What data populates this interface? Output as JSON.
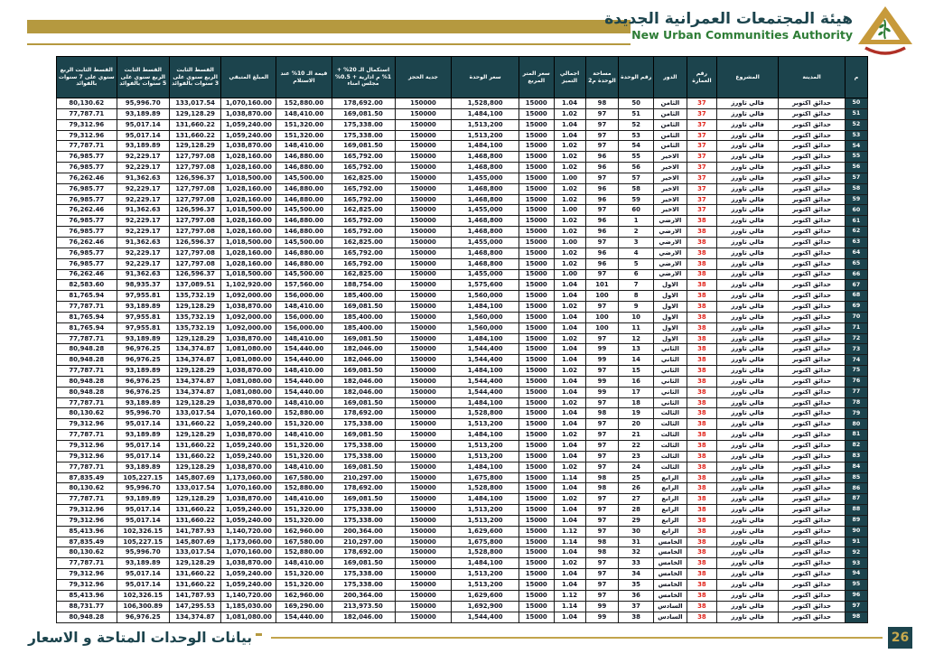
{
  "header": {
    "title_ar": "هيئة المجتمعات العمرانية الجديدة",
    "title_en": "New Urban Communities Authority",
    "logo_icon": "nuca-pyramid-logo"
  },
  "colors": {
    "gold": "#b5993f",
    "teal_header": "#1c444d",
    "green_brand": "#2e7d36",
    "red_building": "#e0241b"
  },
  "table": {
    "column_keys": [
      "no",
      "city",
      "project",
      "building_no",
      "floor",
      "unit_no",
      "area_m2",
      "premium_total",
      "meter_price",
      "unit_price",
      "booking_deposit",
      "completion_20pct",
      "delivery_10pct_value",
      "remaining_amount",
      "installment_3y",
      "installment_5y",
      "installment_7y"
    ],
    "columns": [
      "م",
      "المدينة",
      "المشروع",
      "رقم العمارة",
      "الدور",
      "رقم الوحدة",
      "مساحة الوحدة م2",
      "اجمالي التميز",
      "سعر المتر المربع",
      "سعر الوحدة",
      "جدية الحجز",
      "استكمال الـ 20% + 1% م ادارية + 0.5% مجلس امناء",
      "قيمة الـ 10% عند الاستلام",
      "المبلغ المتبقي",
      "القسط الثابت الربع سنوي على 3 سنوات بالفوائد",
      "القسط الثابت الربع سنوي على 5 سنوات بالفوائد",
      "القسط الثابت الربع سنوي على 7 سنوات بالفوائد"
    ],
    "rows": [
      [
        "50",
        "حدائق اكتوبر",
        "فالي تاورز",
        "37",
        "الثامن",
        "50",
        "98",
        "1.04",
        "15000",
        "1,528,800",
        "150000",
        "178,692.00",
        "152,880.00",
        "1,070,160.00",
        "133,017.54",
        "95,996.70",
        "80,130.62"
      ],
      [
        "51",
        "حدائق اكتوبر",
        "فالي تاورز",
        "37",
        "الثامن",
        "51",
        "97",
        "1.02",
        "15000",
        "1,484,100",
        "150000",
        "169,081.50",
        "148,410.00",
        "1,038,870.00",
        "129,128.29",
        "93,189.89",
        "77,787.71"
      ],
      [
        "52",
        "حدائق اكتوبر",
        "فالي تاورز",
        "37",
        "الثامن",
        "52",
        "97",
        "1.04",
        "15000",
        "1,513,200",
        "150000",
        "175,338.00",
        "151,320.00",
        "1,059,240.00",
        "131,660.22",
        "95,017.14",
        "79,312.96"
      ],
      [
        "53",
        "حدائق اكتوبر",
        "فالي تاورز",
        "37",
        "الثامن",
        "53",
        "97",
        "1.04",
        "15000",
        "1,513,200",
        "150000",
        "175,338.00",
        "151,320.00",
        "1,059,240.00",
        "131,660.22",
        "95,017.14",
        "79,312.96"
      ],
      [
        "54",
        "حدائق اكتوبر",
        "فالي تاورز",
        "37",
        "الثامن",
        "54",
        "97",
        "1.02",
        "15000",
        "1,484,100",
        "150000",
        "169,081.50",
        "148,410.00",
        "1,038,870.00",
        "129,128.29",
        "93,189.89",
        "77,787.71"
      ],
      [
        "55",
        "حدائق اكتوبر",
        "فالي تاورز",
        "37",
        "الاخير",
        "55",
        "96",
        "1.02",
        "15000",
        "1,468,800",
        "150000",
        "165,792.00",
        "146,880.00",
        "1,028,160.00",
        "127,797.08",
        "92,229.17",
        "76,985.77"
      ],
      [
        "56",
        "حدائق اكتوبر",
        "فالي تاورز",
        "37",
        "الاخير",
        "56",
        "96",
        "1.02",
        "15000",
        "1,468,800",
        "150000",
        "165,792.00",
        "146,880.00",
        "1,028,160.00",
        "127,797.08",
        "92,229.17",
        "76,985.77"
      ],
      [
        "57",
        "حدائق اكتوبر",
        "فالي تاورز",
        "37",
        "الاخير",
        "57",
        "97",
        "1.00",
        "15000",
        "1,455,000",
        "150000",
        "162,825.00",
        "145,500.00",
        "1,018,500.00",
        "126,596.37",
        "91,362.63",
        "76,262.46"
      ],
      [
        "58",
        "حدائق اكتوبر",
        "فالي تاورز",
        "37",
        "الاخير",
        "58",
        "96",
        "1.02",
        "15000",
        "1,468,800",
        "150000",
        "165,792.00",
        "146,880.00",
        "1,028,160.00",
        "127,797.08",
        "92,229.17",
        "76,985.77"
      ],
      [
        "59",
        "حدائق اكتوبر",
        "فالي تاورز",
        "37",
        "الاخير",
        "59",
        "96",
        "1.02",
        "15000",
        "1,468,800",
        "150000",
        "165,792.00",
        "146,880.00",
        "1,028,160.00",
        "127,797.08",
        "92,229.17",
        "76,985.77"
      ],
      [
        "60",
        "حدائق اكتوبر",
        "فالي تاورز",
        "37",
        "الاخير",
        "60",
        "97",
        "1.00",
        "15000",
        "1,455,000",
        "150000",
        "162,825.00",
        "145,500.00",
        "1,018,500.00",
        "126,596.37",
        "91,362.63",
        "76,262.46"
      ],
      [
        "61",
        "حدائق اكتوبر",
        "فالي تاورز",
        "38",
        "الارضي",
        "1",
        "96",
        "1.02",
        "15000",
        "1,468,800",
        "150000",
        "165,792.00",
        "146,880.00",
        "1,028,160.00",
        "127,797.08",
        "92,229.17",
        "76,985.77"
      ],
      [
        "62",
        "حدائق اكتوبر",
        "فالي تاورز",
        "38",
        "الارضي",
        "2",
        "96",
        "1.02",
        "15000",
        "1,468,800",
        "150000",
        "165,792.00",
        "146,880.00",
        "1,028,160.00",
        "127,797.08",
        "92,229.17",
        "76,985.77"
      ],
      [
        "63",
        "حدائق اكتوبر",
        "فالي تاورز",
        "38",
        "الارضي",
        "3",
        "97",
        "1.00",
        "15000",
        "1,455,000",
        "150000",
        "162,825.00",
        "145,500.00",
        "1,018,500.00",
        "126,596.37",
        "91,362.63",
        "76,262.46"
      ],
      [
        "64",
        "حدائق اكتوبر",
        "فالي تاورز",
        "38",
        "الارضي",
        "4",
        "96",
        "1.02",
        "15000",
        "1,468,800",
        "150000",
        "165,792.00",
        "146,880.00",
        "1,028,160.00",
        "127,797.08",
        "92,229.17",
        "76,985.77"
      ],
      [
        "65",
        "حدائق اكتوبر",
        "فالي تاورز",
        "38",
        "الارضي",
        "5",
        "96",
        "1.02",
        "15000",
        "1,468,800",
        "150000",
        "165,792.00",
        "146,880.00",
        "1,028,160.00",
        "127,797.08",
        "92,229.17",
        "76,985.77"
      ],
      [
        "66",
        "حدائق اكتوبر",
        "فالي تاورز",
        "38",
        "الارضي",
        "6",
        "97",
        "1.00",
        "15000",
        "1,455,000",
        "150000",
        "162,825.00",
        "145,500.00",
        "1,018,500.00",
        "126,596.37",
        "91,362.63",
        "76,262.46"
      ],
      [
        "67",
        "حدائق اكتوبر",
        "فالي تاورز",
        "38",
        "الاول",
        "7",
        "101",
        "1.04",
        "15000",
        "1,575,600",
        "150000",
        "188,754.00",
        "157,560.00",
        "1,102,920.00",
        "137,089.51",
        "98,935.37",
        "82,583.60"
      ],
      [
        "68",
        "حدائق اكتوبر",
        "فالي تاورز",
        "38",
        "الاول",
        "8",
        "100",
        "1.04",
        "15000",
        "1,560,000",
        "150000",
        "185,400.00",
        "156,000.00",
        "1,092,000.00",
        "135,732.19",
        "97,955.81",
        "81,765.94"
      ],
      [
        "69",
        "حدائق اكتوبر",
        "فالي تاورز",
        "38",
        "الاول",
        "9",
        "97",
        "1.02",
        "15000",
        "1,484,100",
        "150000",
        "169,081.50",
        "148,410.00",
        "1,038,870.00",
        "129,128.29",
        "93,189.89",
        "77,787.71"
      ],
      [
        "70",
        "حدائق اكتوبر",
        "فالي تاورز",
        "38",
        "الاول",
        "10",
        "100",
        "1.04",
        "15000",
        "1,560,000",
        "150000",
        "185,400.00",
        "156,000.00",
        "1,092,000.00",
        "135,732.19",
        "97,955.81",
        "81,765.94"
      ],
      [
        "71",
        "حدائق اكتوبر",
        "فالي تاورز",
        "38",
        "الاول",
        "11",
        "100",
        "1.04",
        "15000",
        "1,560,000",
        "150000",
        "185,400.00",
        "156,000.00",
        "1,092,000.00",
        "135,732.19",
        "97,955.81",
        "81,765.94"
      ],
      [
        "72",
        "حدائق اكتوبر",
        "فالي تاورز",
        "38",
        "الاول",
        "12",
        "97",
        "1.02",
        "15000",
        "1,484,100",
        "150000",
        "169,081.50",
        "148,410.00",
        "1,038,870.00",
        "129,128.29",
        "93,189.89",
        "77,787.71"
      ],
      [
        "73",
        "حدائق اكتوبر",
        "فالي تاورز",
        "38",
        "الثاني",
        "13",
        "99",
        "1.04",
        "15000",
        "1,544,400",
        "150000",
        "182,046.00",
        "154,440.00",
        "1,081,080.00",
        "134,374.87",
        "96,976.25",
        "80,948.28"
      ],
      [
        "74",
        "حدائق اكتوبر",
        "فالي تاورز",
        "38",
        "الثاني",
        "14",
        "99",
        "1.04",
        "15000",
        "1,544,400",
        "150000",
        "182,046.00",
        "154,440.00",
        "1,081,080.00",
        "134,374.87",
        "96,976.25",
        "80,948.28"
      ],
      [
        "75",
        "حدائق اكتوبر",
        "فالي تاورز",
        "38",
        "الثاني",
        "15",
        "97",
        "1.02",
        "15000",
        "1,484,100",
        "150000",
        "169,081.50",
        "148,410.00",
        "1,038,870.00",
        "129,128.29",
        "93,189.89",
        "77,787.71"
      ],
      [
        "76",
        "حدائق اكتوبر",
        "فالي تاورز",
        "38",
        "الثاني",
        "16",
        "99",
        "1.04",
        "15000",
        "1,544,400",
        "150000",
        "182,046.00",
        "154,440.00",
        "1,081,080.00",
        "134,374.87",
        "96,976.25",
        "80,948.28"
      ],
      [
        "77",
        "حدائق اكتوبر",
        "فالي تاورز",
        "38",
        "الثاني",
        "17",
        "99",
        "1.04",
        "15000",
        "1,544,400",
        "150000",
        "182,046.00",
        "154,440.00",
        "1,081,080.00",
        "134,374.87",
        "96,976.25",
        "80,948.28"
      ],
      [
        "78",
        "حدائق اكتوبر",
        "فالي تاورز",
        "38",
        "الثاني",
        "18",
        "97",
        "1.02",
        "15000",
        "1,484,100",
        "150000",
        "169,081.50",
        "148,410.00",
        "1,038,870.00",
        "129,128.29",
        "93,189.89",
        "77,787.71"
      ],
      [
        "79",
        "حدائق اكتوبر",
        "فالي تاورز",
        "38",
        "الثالث",
        "19",
        "98",
        "1.04",
        "15000",
        "1,528,800",
        "150000",
        "178,692.00",
        "152,880.00",
        "1,070,160.00",
        "133,017.54",
        "95,996.70",
        "80,130.62"
      ],
      [
        "80",
        "حدائق اكتوبر",
        "فالي تاورز",
        "38",
        "الثالث",
        "20",
        "97",
        "1.04",
        "15000",
        "1,513,200",
        "150000",
        "175,338.00",
        "151,320.00",
        "1,059,240.00",
        "131,660.22",
        "95,017.14",
        "79,312.96"
      ],
      [
        "81",
        "حدائق اكتوبر",
        "فالي تاورز",
        "38",
        "الثالث",
        "21",
        "97",
        "1.02",
        "15000",
        "1,484,100",
        "150000",
        "169,081.50",
        "148,410.00",
        "1,038,870.00",
        "129,128.29",
        "93,189.89",
        "77,787.71"
      ],
      [
        "82",
        "حدائق اكتوبر",
        "فالي تاورز",
        "38",
        "الثالث",
        "22",
        "97",
        "1.04",
        "15000",
        "1,513,200",
        "150000",
        "175,338.00",
        "151,320.00",
        "1,059,240.00",
        "131,660.22",
        "95,017.14",
        "79,312.96"
      ],
      [
        "83",
        "حدائق اكتوبر",
        "فالي تاورز",
        "38",
        "الثالث",
        "23",
        "97",
        "1.04",
        "15000",
        "1,513,200",
        "150000",
        "175,338.00",
        "151,320.00",
        "1,059,240.00",
        "131,660.22",
        "95,017.14",
        "79,312.96"
      ],
      [
        "84",
        "حدائق اكتوبر",
        "فالي تاورز",
        "38",
        "الثالث",
        "24",
        "97",
        "1.02",
        "15000",
        "1,484,100",
        "150000",
        "169,081.50",
        "148,410.00",
        "1,038,870.00",
        "129,128.29",
        "93,189.89",
        "77,787.71"
      ],
      [
        "85",
        "حدائق اكتوبر",
        "فالي تاورز",
        "38",
        "الرابع",
        "25",
        "98",
        "1.14",
        "15000",
        "1,675,800",
        "150000",
        "210,297.00",
        "167,580.00",
        "1,173,060.00",
        "145,807.69",
        "105,227.15",
        "87,835.49"
      ],
      [
        "86",
        "حدائق اكتوبر",
        "فالي تاورز",
        "38",
        "الرابع",
        "26",
        "98",
        "1.04",
        "15000",
        "1,528,800",
        "150000",
        "178,692.00",
        "152,880.00",
        "1,070,160.00",
        "133,017.54",
        "95,996.70",
        "80,130.62"
      ],
      [
        "87",
        "حدائق اكتوبر",
        "فالي تاورز",
        "38",
        "الرابع",
        "27",
        "97",
        "1.02",
        "15000",
        "1,484,100",
        "150000",
        "169,081.50",
        "148,410.00",
        "1,038,870.00",
        "129,128.29",
        "93,189.89",
        "77,787.71"
      ],
      [
        "88",
        "حدائق اكتوبر",
        "فالي تاورز",
        "38",
        "الرابع",
        "28",
        "97",
        "1.04",
        "15000",
        "1,513,200",
        "150000",
        "175,338.00",
        "151,320.00",
        "1,059,240.00",
        "131,660.22",
        "95,017.14",
        "79,312.96"
      ],
      [
        "89",
        "حدائق اكتوبر",
        "فالي تاورز",
        "38",
        "الرابع",
        "29",
        "97",
        "1.04",
        "15000",
        "1,513,200",
        "150000",
        "175,338.00",
        "151,320.00",
        "1,059,240.00",
        "131,660.22",
        "95,017.14",
        "79,312.96"
      ],
      [
        "90",
        "حدائق اكتوبر",
        "فالي تاورز",
        "38",
        "الرابع",
        "30",
        "97",
        "1.12",
        "15000",
        "1,629,600",
        "150000",
        "200,364.00",
        "162,960.00",
        "1,140,720.00",
        "141,787.93",
        "102,326.15",
        "85,413.96"
      ],
      [
        "91",
        "حدائق اكتوبر",
        "فالي تاورز",
        "38",
        "الخامس",
        "31",
        "98",
        "1.14",
        "15000",
        "1,675,800",
        "150000",
        "210,297.00",
        "167,580.00",
        "1,173,060.00",
        "145,807.69",
        "105,227.15",
        "87,835.49"
      ],
      [
        "92",
        "حدائق اكتوبر",
        "فالي تاورز",
        "38",
        "الخامس",
        "32",
        "98",
        "1.04",
        "15000",
        "1,528,800",
        "150000",
        "178,692.00",
        "152,880.00",
        "1,070,160.00",
        "133,017.54",
        "95,996.70",
        "80,130.62"
      ],
      [
        "93",
        "حدائق اكتوبر",
        "فالي تاورز",
        "38",
        "الخامس",
        "33",
        "97",
        "1.02",
        "15000",
        "1,484,100",
        "150000",
        "169,081.50",
        "148,410.00",
        "1,038,870.00",
        "129,128.29",
        "93,189.89",
        "77,787.71"
      ],
      [
        "94",
        "حدائق اكتوبر",
        "فالي تاورز",
        "38",
        "الخامس",
        "34",
        "97",
        "1.04",
        "15000",
        "1,513,200",
        "150000",
        "175,338.00",
        "151,320.00",
        "1,059,240.00",
        "131,660.22",
        "95,017.14",
        "79,312.96"
      ],
      [
        "95",
        "حدائق اكتوبر",
        "فالي تاورز",
        "38",
        "الخامس",
        "35",
        "97",
        "1.04",
        "15000",
        "1,513,200",
        "150000",
        "175,338.00",
        "151,320.00",
        "1,059,240.00",
        "131,660.22",
        "95,017.14",
        "79,312.96"
      ],
      [
        "96",
        "حدائق اكتوبر",
        "فالي تاورز",
        "38",
        "الخامس",
        "36",
        "97",
        "1.12",
        "15000",
        "1,629,600",
        "150000",
        "200,364.00",
        "162,960.00",
        "1,140,720.00",
        "141,787.93",
        "102,326.15",
        "85,413.96"
      ],
      [
        "97",
        "حدائق اكتوبر",
        "فالي تاورز",
        "38",
        "السادس",
        "37",
        "99",
        "1.14",
        "15000",
        "1,692,900",
        "150000",
        "213,973.50",
        "169,290.00",
        "1,185,030.00",
        "147,295.53",
        "106,300.89",
        "88,731.77"
      ],
      [
        "98",
        "حدائق اكتوبر",
        "فالي تاورز",
        "38",
        "السادس",
        "38",
        "99",
        "1.04",
        "15000",
        "1,544,400",
        "150000",
        "182,046.00",
        "154,440.00",
        "1,081,080.00",
        "134,374.87",
        "96,976.25",
        "80,948.28"
      ]
    ]
  },
  "footer": {
    "title": "بيانات الوحدات المتاحة و الاسعار",
    "page_number": "26"
  }
}
